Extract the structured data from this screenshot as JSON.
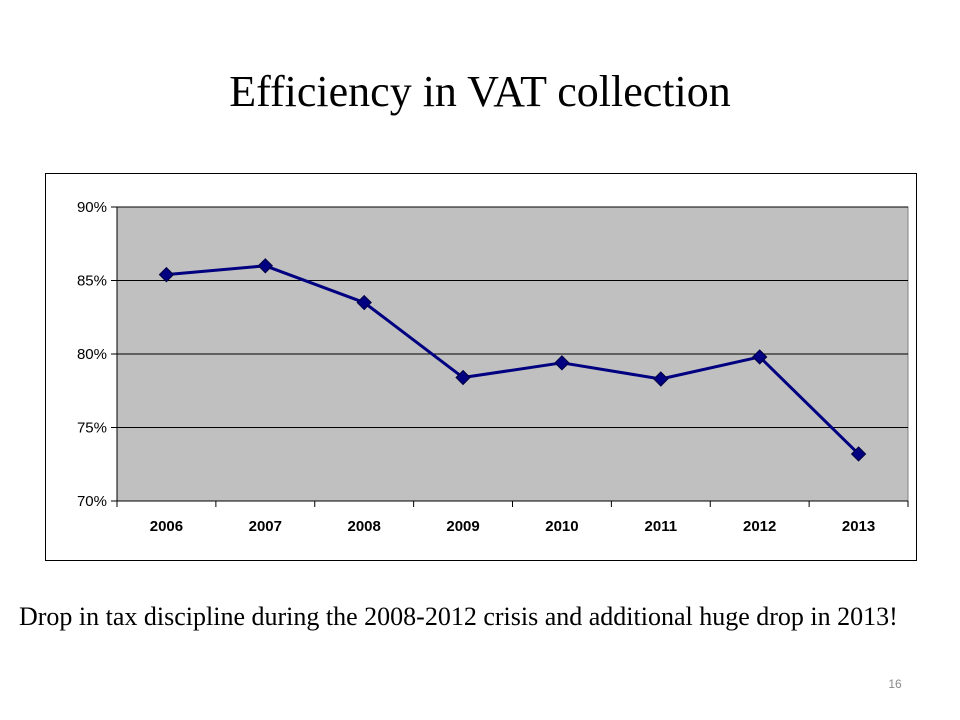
{
  "slide": {
    "title": "Efficiency in VAT collection",
    "caption": "Drop in tax discipline during the 2008-2012 crisis and additional huge drop in 2013!",
    "page_number": "16"
  },
  "chart_data": {
    "type": "line",
    "title": "",
    "xlabel": "",
    "ylabel": "",
    "categories": [
      "2006",
      "2007",
      "2008",
      "2009",
      "2010",
      "2011",
      "2012",
      "2013"
    ],
    "series": [
      {
        "values": [
          85.4,
          86.0,
          83.5,
          78.4,
          79.4,
          78.3,
          79.8,
          73.2
        ]
      }
    ],
    "ylim": [
      70,
      90
    ],
    "yticks": [
      70,
      75,
      80,
      85,
      90
    ],
    "ytick_labels": [
      "70%",
      "75%",
      "80%",
      "85%",
      "90%"
    ],
    "grid": "horizontal",
    "legend": "none",
    "colors": {
      "line": "#000080",
      "marker": "#000080",
      "plot_bg": "#c0c0c0",
      "gridline": "#000000"
    }
  }
}
